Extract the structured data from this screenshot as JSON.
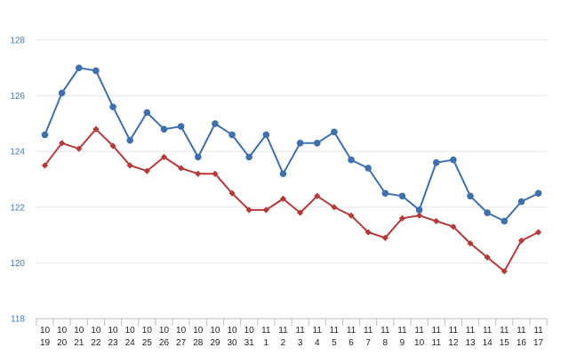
{
  "chart_data": {
    "type": "line",
    "title": "",
    "xlabel": "",
    "ylabel": "",
    "ylim": [
      118,
      128
    ],
    "yticks": [
      118,
      120,
      122,
      124,
      126,
      128
    ],
    "grid": "horizontal",
    "legend": "none",
    "categories": [
      [
        "10",
        "19"
      ],
      [
        "10",
        "20"
      ],
      [
        "10",
        "21"
      ],
      [
        "10",
        "22"
      ],
      [
        "10",
        "23"
      ],
      [
        "10",
        "24"
      ],
      [
        "10",
        "25"
      ],
      [
        "10",
        "26"
      ],
      [
        "10",
        "27"
      ],
      [
        "10",
        "28"
      ],
      [
        "10",
        "29"
      ],
      [
        "10",
        "30"
      ],
      [
        "10",
        "31"
      ],
      [
        "11",
        "1"
      ],
      [
        "11",
        "2"
      ],
      [
        "11",
        "3"
      ],
      [
        "11",
        "4"
      ],
      [
        "11",
        "5"
      ],
      [
        "11",
        "6"
      ],
      [
        "11",
        "7"
      ],
      [
        "11",
        "8"
      ],
      [
        "11",
        "9"
      ],
      [
        "11",
        "10"
      ],
      [
        "11",
        "11"
      ],
      [
        "11",
        "12"
      ],
      [
        "11",
        "13"
      ],
      [
        "11",
        "14"
      ],
      [
        "11",
        "15"
      ],
      [
        "11",
        "16"
      ],
      [
        "11",
        "17"
      ]
    ],
    "series": [
      {
        "color": "#3e6fae",
        "marker": "circle",
        "values": [
          124.6,
          126.1,
          127.0,
          126.9,
          125.6,
          124.4,
          125.4,
          124.8,
          124.9,
          123.8,
          125.0,
          124.6,
          123.8,
          124.6,
          123.2,
          124.3,
          124.3,
          124.7,
          123.7,
          123.4,
          122.5,
          122.4,
          121.9,
          123.6,
          123.7,
          122.4,
          121.8,
          121.5,
          122.2,
          122.5
        ]
      },
      {
        "color": "#b6393a",
        "marker": "diamond",
        "values": [
          123.5,
          124.3,
          124.1,
          124.8,
          124.2,
          123.5,
          123.3,
          123.8,
          123.4,
          123.2,
          123.2,
          122.5,
          121.9,
          121.9,
          122.3,
          121.8,
          122.4,
          122.0,
          121.7,
          121.1,
          120.9,
          121.6,
          121.7,
          121.5,
          121.3,
          120.7,
          120.2,
          119.7,
          120.8,
          121.1
        ]
      }
    ]
  }
}
